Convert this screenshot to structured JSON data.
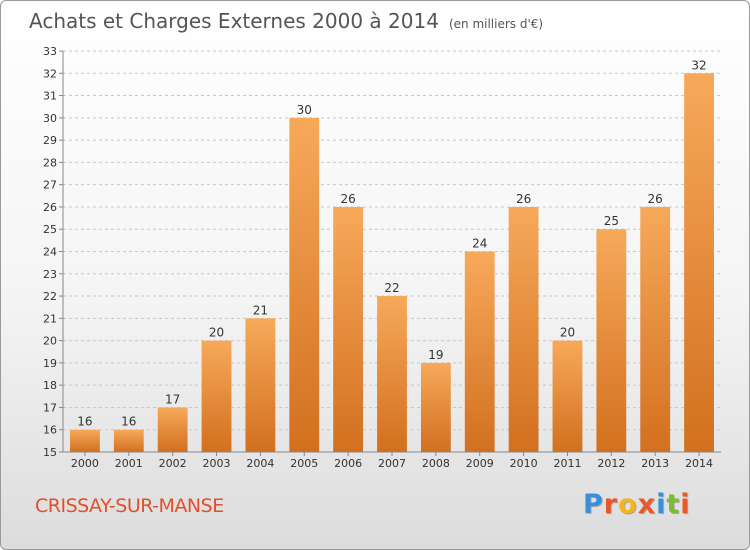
{
  "header": {
    "title": "Achats et Charges Externes 2000 à 2014",
    "unit": "(en milliers d'€)"
  },
  "footer": {
    "commune": "CRISSAY-SUR-MANSE",
    "logo_text": "Proxiti",
    "logo_colors": [
      "#3a8fd8",
      "#e8592a",
      "#f2b51c",
      "#e8592a",
      "#3a8fd8",
      "#7dbb32",
      "#e8592a"
    ]
  },
  "chart_data": {
    "type": "bar",
    "title": "Achats et Charges Externes 2000 à 2014",
    "subtitle": "(en milliers d'€)",
    "categories": [
      "2000",
      "2001",
      "2002",
      "2003",
      "2004",
      "2005",
      "2006",
      "2007",
      "2008",
      "2009",
      "2010",
      "2011",
      "2012",
      "2013",
      "2014"
    ],
    "values": [
      16,
      16,
      17,
      20,
      21,
      30,
      26,
      22,
      19,
      24,
      26,
      20,
      25,
      26,
      32
    ],
    "xlabel": "",
    "ylabel": "",
    "ylim": [
      15,
      33
    ],
    "yticks": [
      15,
      16,
      17,
      18,
      19,
      20,
      21,
      22,
      23,
      24,
      25,
      26,
      27,
      28,
      29,
      30,
      31,
      32,
      33
    ],
    "grid": "horizontal-dashed",
    "colors": {
      "bar_top": "#f7a95a",
      "bar_bottom": "#d2701f",
      "grid": "#c8c8c8",
      "axis": "#888888",
      "text": "#333333"
    }
  }
}
